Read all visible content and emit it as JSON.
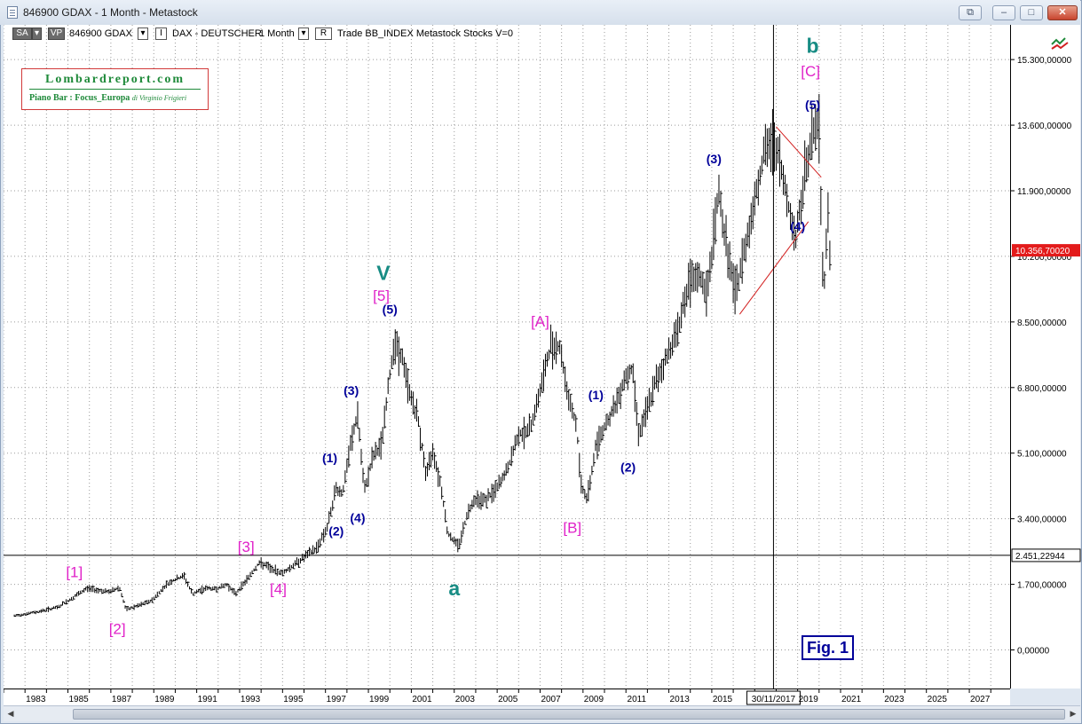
{
  "window": {
    "title": "846900 GDAX - 1 Month - Metastock"
  },
  "toolbar": {
    "sa": "SA",
    "vp": "VP",
    "symbol": "846900 GDAX",
    "i_box": "I",
    "instrument": "DAX - DEUTSCHER",
    "period": "1 Month",
    "r_box": "R",
    "info": "Trade  BB_INDEX  Metastock  Stocks  V=0"
  },
  "logo": {
    "title": "Lombardreport.com",
    "subtitle": "Piano Bar : Focus_Europa",
    "author": "di Virginio Frigieri"
  },
  "fig_label": "Fig. 1",
  "colors": {
    "price_bars": "#000000",
    "wave_minor": "#00009a",
    "wave_bracket": "#e020c8",
    "wave_major": "#178c84",
    "triangle": "#d22020",
    "last_price_bg": "#e31b1b"
  },
  "icons": [
    "document-icon",
    "restore-icon",
    "minimize-icon",
    "maximize-icon",
    "close-icon",
    "chart-tools-icon",
    "scroll-left-icon",
    "scroll-right-icon"
  ],
  "chart_data": {
    "type": "line",
    "series": [
      {
        "values": [
          [
            1982.5,
            880
          ],
          [
            1983.5,
            980
          ],
          [
            1984.5,
            1100
          ],
          [
            1985.3,
            1380
          ],
          [
            1985.9,
            1600
          ],
          [
            1986.4,
            1550
          ],
          [
            1986.9,
            1500
          ],
          [
            1987.4,
            1620
          ],
          [
            1987.7,
            1040
          ],
          [
            1988.3,
            1150
          ],
          [
            1988.9,
            1280
          ],
          [
            1989.6,
            1700
          ],
          [
            1989.9,
            1800
          ],
          [
            1990.4,
            1920
          ],
          [
            1990.8,
            1450
          ],
          [
            1991.4,
            1600
          ],
          [
            1991.9,
            1580
          ],
          [
            1992.4,
            1700
          ],
          [
            1992.8,
            1450
          ],
          [
            1993.3,
            1800
          ],
          [
            1993.9,
            2250
          ],
          [
            1994.2,
            2200
          ],
          [
            1994.6,
            2050
          ],
          [
            1995.0,
            2000
          ],
          [
            1995.4,
            2150
          ],
          [
            1996.0,
            2400
          ],
          [
            1996.6,
            2650
          ],
          [
            1997.1,
            3200
          ],
          [
            1997.5,
            4200
          ],
          [
            1997.8,
            4050
          ],
          [
            1998.2,
            5400
          ],
          [
            1998.5,
            6100
          ],
          [
            1998.8,
            4100
          ],
          [
            1999.2,
            5000
          ],
          [
            1999.6,
            5300
          ],
          [
            1999.9,
            6700
          ],
          [
            2000.2,
            8000
          ],
          [
            2000.6,
            7500
          ],
          [
            2000.9,
            6700
          ],
          [
            2001.3,
            6000
          ],
          [
            2001.7,
            4500
          ],
          [
            2002.0,
            5200
          ],
          [
            2002.4,
            4200
          ],
          [
            2002.7,
            3000
          ],
          [
            2003.2,
            2700
          ],
          [
            2003.6,
            3500
          ],
          [
            2003.9,
            3900
          ],
          [
            2004.5,
            3900
          ],
          [
            2005.0,
            4200
          ],
          [
            2005.5,
            4700
          ],
          [
            2006.0,
            5600
          ],
          [
            2006.5,
            5700
          ],
          [
            2007.0,
            6700
          ],
          [
            2007.5,
            7900
          ],
          [
            2007.9,
            7900
          ],
          [
            2008.3,
            6600
          ],
          [
            2008.7,
            5800
          ],
          [
            2008.9,
            4300
          ],
          [
            2009.2,
            3900
          ],
          [
            2009.6,
            5300
          ],
          [
            2010.0,
            5800
          ],
          [
            2010.5,
            6300
          ],
          [
            2010.9,
            7000
          ],
          [
            2011.3,
            7300
          ],
          [
            2011.6,
            5600
          ],
          [
            2011.8,
            5900
          ],
          [
            2012.3,
            6800
          ],
          [
            2012.9,
            7600
          ],
          [
            2013.4,
            8300
          ],
          [
            2013.9,
            9400
          ],
          [
            2014.4,
            9700
          ],
          [
            2014.8,
            9200
          ],
          [
            2015.3,
            11900
          ],
          [
            2015.7,
            10400
          ],
          [
            2016.1,
            9200
          ],
          [
            2016.5,
            10300
          ],
          [
            2016.9,
            11400
          ],
          [
            2017.4,
            12800
          ],
          [
            2017.9,
            13200
          ],
          [
            2018.3,
            12300
          ],
          [
            2018.9,
            10600
          ],
          [
            2019.3,
            12200
          ],
          [
            2019.8,
            13600
          ],
          [
            2020.0,
            13500
          ],
          [
            2020.2,
            9000
          ],
          [
            2020.4,
            11500
          ],
          [
            2020.5,
            10356
          ]
        ]
      }
    ],
    "xlim": [
      1982.0,
      2028.9
    ],
    "ylim": [
      -1000,
      16200
    ],
    "x_ticks": [
      "1983",
      "1985",
      "1987",
      "1989",
      "1991",
      "1993",
      "1995",
      "1997",
      "1999",
      "2001",
      "2003",
      "2005",
      "2007",
      "2009",
      "2011",
      "2013",
      "2015",
      "30/11/2017",
      "2019",
      "2021",
      "2023",
      "2025",
      "2027"
    ],
    "y_ticks": [
      "15.300,00000",
      "13.600,00000",
      "11.900,00000",
      "10.200,00000",
      "8.500,00000",
      "6.800,00000",
      "5.100,00000",
      "3.400,00000",
      "1.700,00000",
      "0,00000"
    ],
    "last_price": "10.356,70020",
    "crosshair_price": "2.451,22944",
    "crosshair_date": "30/11/2017",
    "grid": true,
    "annotations": [
      {
        "text": "[1]",
        "x": 1985.3,
        "y": 1990,
        "level": "bracket"
      },
      {
        "text": "[2]",
        "x": 1987.3,
        "y": 520,
        "level": "bracket"
      },
      {
        "text": "[3]",
        "x": 1993.3,
        "y": 2650,
        "level": "bracket"
      },
      {
        "text": "[4]",
        "x": 1994.8,
        "y": 1550,
        "level": "bracket"
      },
      {
        "text": "(1)",
        "x": 1997.2,
        "y": 4950,
        "level": "minor"
      },
      {
        "text": "(2)",
        "x": 1997.5,
        "y": 3050,
        "level": "minor"
      },
      {
        "text": "(3)",
        "x": 1998.2,
        "y": 6700,
        "level": "minor"
      },
      {
        "text": "(4)",
        "x": 1998.5,
        "y": 3400,
        "level": "minor"
      },
      {
        "text": "(5)",
        "x": 2000.0,
        "y": 8800,
        "level": "minor"
      },
      {
        "text": "[5]",
        "x": 1999.6,
        "y": 9150,
        "level": "bracket"
      },
      {
        "text": "V",
        "x": 1999.7,
        "y": 9730,
        "level": "major"
      },
      {
        "text": "a",
        "x": 2003.0,
        "y": 1550,
        "level": "major"
      },
      {
        "text": "[A]",
        "x": 2007.0,
        "y": 8490,
        "level": "bracket"
      },
      {
        "text": "[B]",
        "x": 2008.5,
        "y": 3140,
        "level": "bracket"
      },
      {
        "text": "(1)",
        "x": 2009.6,
        "y": 6580,
        "level": "minor"
      },
      {
        "text": "(2)",
        "x": 2011.1,
        "y": 4710,
        "level": "minor"
      },
      {
        "text": "(3)",
        "x": 2015.1,
        "y": 12700,
        "level": "minor"
      },
      {
        "text": "(4)",
        "x": 2019.0,
        "y": 10950,
        "level": "minor"
      },
      {
        "text": "(5)",
        "x": 2019.7,
        "y": 14100,
        "level": "minor"
      },
      {
        "text": "[C]",
        "x": 2019.6,
        "y": 14970,
        "level": "bracket"
      },
      {
        "text": "b",
        "x": 2019.7,
        "y": 15620,
        "level": "major"
      }
    ],
    "trendlines": [
      {
        "from": [
          2016.3,
          8700
        ],
        "to": [
          2019.5,
          11100
        ]
      },
      {
        "from": [
          2018.0,
          13560
        ],
        "to": [
          2020.1,
          12250
        ]
      }
    ]
  }
}
